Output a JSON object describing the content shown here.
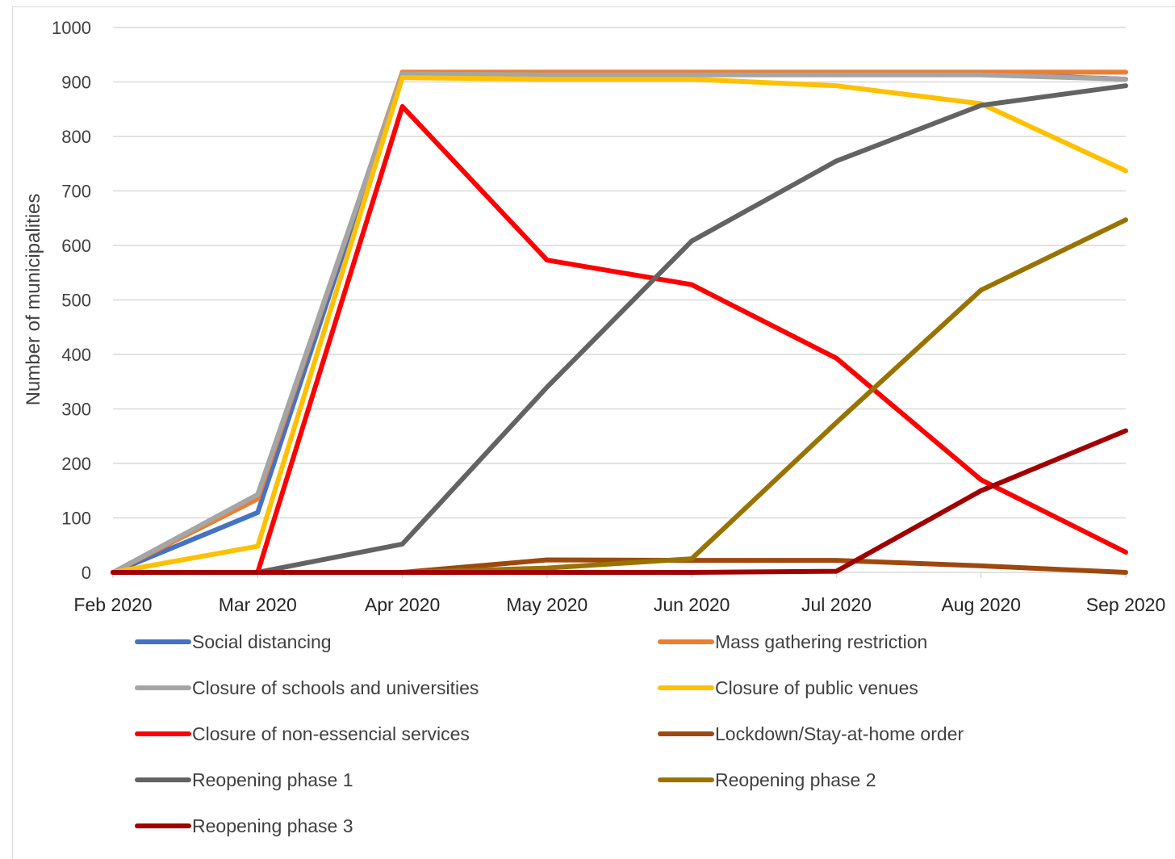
{
  "chart_data": {
    "type": "line",
    "title": "",
    "xlabel": "",
    "ylabel": "Number of municipalities",
    "ylim": [
      0,
      1000
    ],
    "yticks": [
      0,
      100,
      200,
      300,
      400,
      500,
      600,
      700,
      800,
      900,
      1000
    ],
    "grid": "horizontal",
    "legend_position": "bottom",
    "categories": [
      "Feb 2020",
      "Mar 2020",
      "Apr 2020",
      "May 2020",
      "Jun 2020",
      "Jul 2020",
      "Aug 2020",
      "Sep 2020"
    ],
    "series": [
      {
        "name": "Social distancing",
        "color": "#4472c4",
        "values": [
          0,
          110,
          915,
          915,
          915,
          915,
          915,
          905
        ]
      },
      {
        "name": "Mass gathering restriction",
        "color": "#ed7d31",
        "values": [
          0,
          135,
          918,
          918,
          918,
          918,
          918,
          918
        ]
      },
      {
        "name": "Closure of schools and universities",
        "color": "#a5a5a5",
        "values": [
          0,
          143,
          915,
          913,
          913,
          913,
          913,
          905
        ]
      },
      {
        "name": "Closure of public venues",
        "color": "#ffc000",
        "values": [
          0,
          48,
          908,
          905,
          905,
          893,
          860,
          737
        ]
      },
      {
        "name": "Closure of non-essencial services",
        "color": "#ff0000",
        "values": [
          0,
          0,
          855,
          573,
          528,
          393,
          170,
          37
        ]
      },
      {
        "name": "Lockdown/Stay-at-home order",
        "color": "#9e480e",
        "values": [
          0,
          0,
          0,
          23,
          22,
          22,
          12,
          0
        ]
      },
      {
        "name": "Reopening phase 1",
        "color": "#636363",
        "values": [
          0,
          0,
          52,
          340,
          608,
          755,
          857,
          893
        ]
      },
      {
        "name": "Reopening phase 2",
        "color": "#997300",
        "values": [
          0,
          0,
          0,
          8,
          25,
          275,
          518,
          647
        ]
      },
      {
        "name": "Reopening phase 3",
        "color": "#a00000",
        "values": [
          0,
          0,
          0,
          0,
          0,
          2,
          150,
          260
        ]
      }
    ]
  }
}
